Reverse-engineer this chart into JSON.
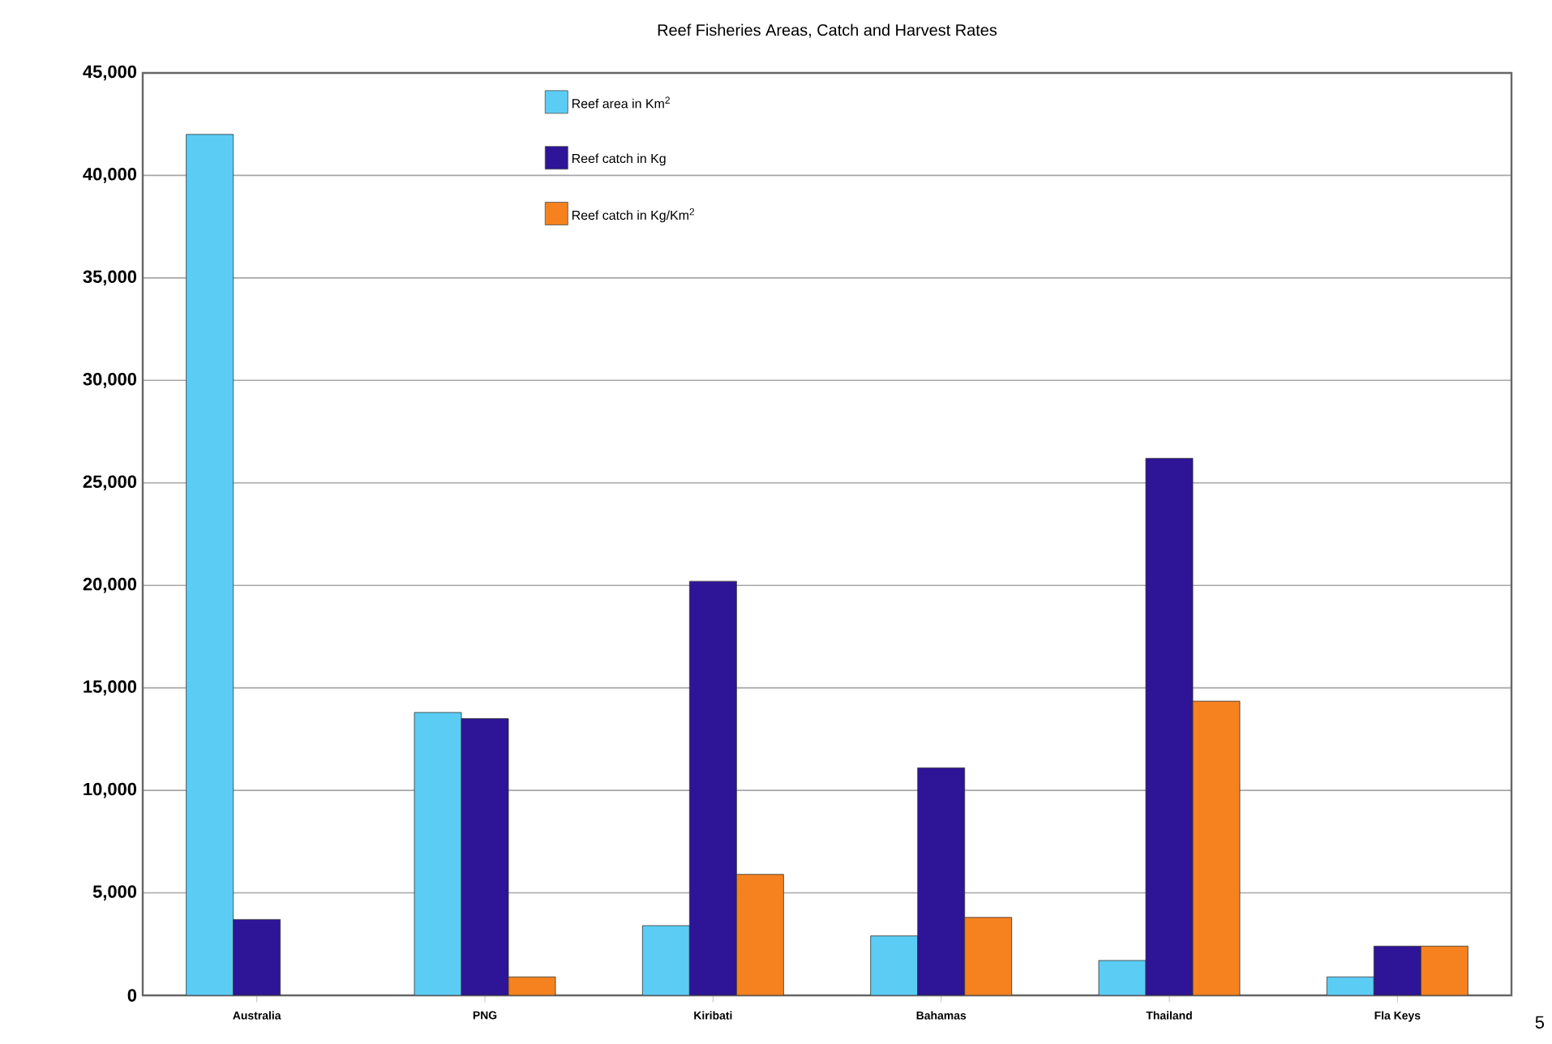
{
  "chart_data": {
    "type": "bar",
    "title": "Reef Fisheries Areas, Catch and Harvest Rates",
    "categories": [
      "Australia",
      "PNG",
      "Kiribati",
      "Bahamas",
      "Thailand",
      "Fla Keys"
    ],
    "series": [
      {
        "name": "Reef area in Km$^{2}$",
        "color": "#5bcdf5",
        "values": [
          42000,
          13800,
          3400,
          2900,
          1700,
          900
        ]
      },
      {
        "name": "Reef catch in Kg",
        "color": "#2e1496",
        "values": [
          3700,
          13500,
          20200,
          11100,
          26200,
          2400
        ]
      },
      {
        "name": "Reef catch in Kg/Km$^{2}$",
        "color": "#f5821f",
        "values": [
          null,
          900,
          5900,
          3800,
          14350,
          2400
        ]
      }
    ],
    "ylim": [
      0,
      45000
    ],
    "yticks": [
      {
        "value": 0,
        "label": "0"
      },
      {
        "value": 5000,
        "label": "5,000"
      },
      {
        "value": 10000,
        "label": "10,000"
      },
      {
        "value": 15000,
        "label": "15,000"
      },
      {
        "value": 20000,
        "label": "20,000"
      },
      {
        "value": 25000,
        "label": "25,000"
      },
      {
        "value": 30000,
        "label": "30,000"
      },
      {
        "value": 35000,
        "label": "35,000"
      },
      {
        "value": 40000,
        "label": "40,000"
      },
      {
        "value": 45000,
        "label": "45,000"
      }
    ],
    "grid": "y",
    "legend": "top",
    "annotations": [
      "5"
    ]
  }
}
